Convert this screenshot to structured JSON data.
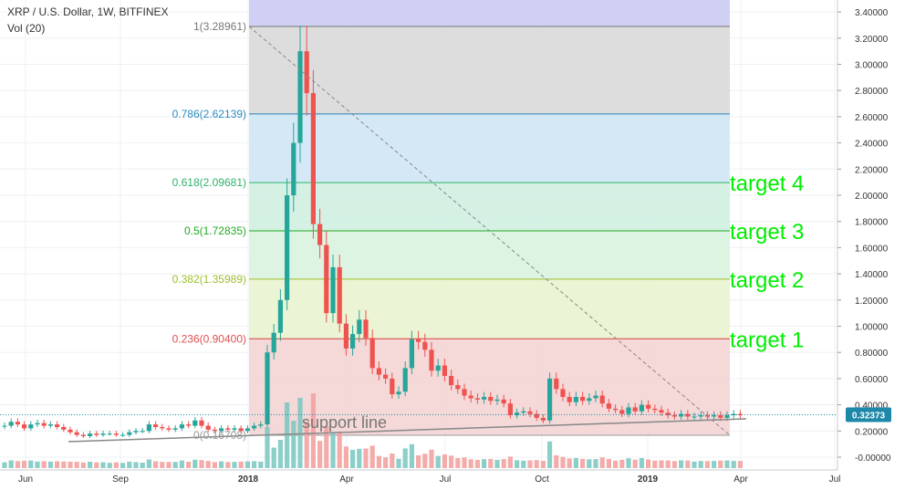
{
  "header": {
    "title": "XRP / U.S. Dollar, 1W, BITFINEX",
    "volume_label": "Vol (20)"
  },
  "colors": {
    "up": "#26a69a",
    "down": "#ef5350",
    "grid": "#eef0f3",
    "axis_text": "#333333",
    "price_tag": "#1e88a8",
    "target_text": "#00ee00"
  },
  "chart_data": {
    "type": "candlestick",
    "symbol": "XRP / U.S. Dollar",
    "interval": "1W",
    "exchange": "BITFINEX",
    "ylim": [
      0,
      3.45
    ],
    "y_ticks": [
      "-0.00000",
      "0.20000",
      "0.40000",
      "0.60000",
      "0.80000",
      "1.00000",
      "1.20000",
      "1.40000",
      "1.60000",
      "1.80000",
      "2.00000",
      "2.20000",
      "2.40000",
      "2.60000",
      "2.80000",
      "3.00000",
      "3.20000",
      "3.40000"
    ],
    "x_ticks": [
      "Jun",
      "Sep",
      "2018",
      "Apr",
      "Jul",
      "Oct",
      "2019",
      "Apr",
      "Jul"
    ],
    "last_price": "0.32373",
    "fib_levels": [
      {
        "ratio": 1,
        "price": 3.28961,
        "label": "1(3.28961)"
      },
      {
        "ratio": 0.786,
        "price": 2.62139,
        "label": "0.786(2.62139)"
      },
      {
        "ratio": 0.618,
        "price": 2.09681,
        "label": "0.618(2.09681)"
      },
      {
        "ratio": 0.5,
        "price": 1.72835,
        "label": "0.5(1.72835)"
      },
      {
        "ratio": 0.382,
        "price": 1.35989,
        "label": "0.382(1.35989)"
      },
      {
        "ratio": 0.236,
        "price": 0.904,
        "label": "0.236(0.90400)"
      },
      {
        "ratio": 0,
        "price": 0.16708,
        "label": "0(0.16708)"
      }
    ],
    "targets": [
      {
        "label": "target 4",
        "price": 2.09681
      },
      {
        "label": "target 3",
        "price": 1.72835
      },
      {
        "label": "target 2",
        "price": 1.35989
      },
      {
        "label": "target 1",
        "price": 0.904
      }
    ],
    "annotations": [
      "support line"
    ],
    "closes": [
      0.24,
      0.27,
      0.25,
      0.22,
      0.25,
      0.26,
      0.24,
      0.25,
      0.23,
      0.21,
      0.19,
      0.17,
      0.16,
      0.18,
      0.17,
      0.18,
      0.18,
      0.17,
      0.17,
      0.19,
      0.2,
      0.2,
      0.25,
      0.23,
      0.22,
      0.21,
      0.22,
      0.25,
      0.24,
      0.28,
      0.24,
      0.21,
      0.2,
      0.22,
      0.21,
      0.22,
      0.2,
      0.22,
      0.24,
      0.25,
      0.8,
      0.95,
      1.2,
      2.0,
      2.4,
      3.1,
      2.78,
      1.78,
      1.62,
      1.1,
      1.45,
      1.02,
      0.83,
      0.94,
      1.05,
      0.91,
      0.68,
      0.63,
      0.6,
      0.48,
      0.5,
      0.68,
      0.9,
      0.88,
      0.82,
      0.66,
      0.7,
      0.62,
      0.55,
      0.52,
      0.47,
      0.45,
      0.44,
      0.46,
      0.43,
      0.44,
      0.41,
      0.32,
      0.34,
      0.35,
      0.33,
      0.3,
      0.28,
      0.6,
      0.52,
      0.46,
      0.42,
      0.46,
      0.43,
      0.45,
      0.47,
      0.41,
      0.37,
      0.36,
      0.33,
      0.38,
      0.35,
      0.4,
      0.37,
      0.36,
      0.34,
      0.32,
      0.31,
      0.33,
      0.31,
      0.31,
      0.32,
      0.31,
      0.32,
      0.3,
      0.32,
      0.33,
      0.32
    ]
  }
}
